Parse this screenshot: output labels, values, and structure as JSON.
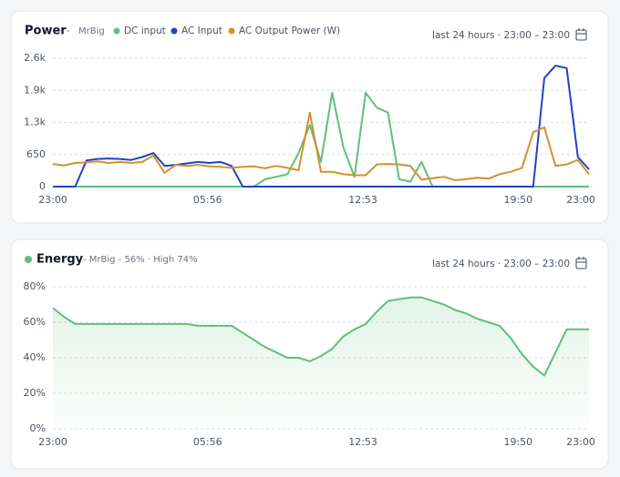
{
  "chart_data": [
    {
      "type": "line",
      "title": "Power",
      "title_separator": "-",
      "subtitle": "MrBig",
      "date_range": "last 24 hours · 23:00 – 23:00",
      "x": [
        0,
        0.5,
        1,
        1.5,
        2,
        2.5,
        3,
        3.5,
        4,
        4.5,
        5,
        5.5,
        6,
        6.5,
        7,
        7.5,
        8,
        8.5,
        9,
        9.5,
        10,
        10.5,
        11,
        11.5,
        12,
        12.5,
        13,
        13.5,
        14,
        14.5,
        15,
        15.5,
        16,
        16.5,
        17,
        17.5,
        18,
        18.5,
        19,
        19.5,
        20,
        20.5,
        21,
        21.5,
        22,
        22.5,
        23,
        23.5,
        24
      ],
      "xlim": [
        0,
        24
      ],
      "xticks": [
        {
          "value": 0,
          "label": "23:00"
        },
        {
          "value": 6.93,
          "label": "05:56"
        },
        {
          "value": 13.88,
          "label": "12:53"
        },
        {
          "value": 20.83,
          "label": "19:50"
        },
        {
          "value": 24,
          "label": "23:00"
        }
      ],
      "ylim": [
        0,
        2600
      ],
      "yticks": [
        0,
        650,
        {
          "value": 1300,
          "label": "1.3k"
        },
        {
          "value": 1950,
          "label": "1.9k"
        },
        {
          "value": 2600,
          "label": "2.6k"
        }
      ],
      "grid": true,
      "series": [
        {
          "name": "DC input",
          "color": "#5fbf7a",
          "values": [
            0,
            0,
            0,
            0,
            0,
            0,
            0,
            0,
            0,
            0,
            0,
            0,
            0,
            0,
            0,
            0,
            0,
            0,
            0,
            150,
            200,
            250,
            680,
            1250,
            500,
            1900,
            800,
            200,
            1900,
            1600,
            1500,
            150,
            100,
            500,
            0,
            0,
            0,
            0,
            0,
            0,
            0,
            0,
            0,
            0,
            0,
            0,
            0,
            0,
            0
          ]
        },
        {
          "name": "AC Input",
          "color": "#2343c0",
          "values": [
            0,
            0,
            0,
            530,
            560,
            570,
            560,
            540,
            600,
            680,
            420,
            440,
            470,
            500,
            480,
            500,
            420,
            0,
            0,
            0,
            0,
            0,
            0,
            0,
            0,
            0,
            0,
            0,
            0,
            0,
            0,
            0,
            0,
            0,
            0,
            0,
            0,
            0,
            0,
            0,
            0,
            0,
            0,
            0,
            2200,
            2450,
            2400,
            600,
            350
          ]
        },
        {
          "name": "AC Output Power (W)",
          "color": "#d4902f",
          "values": [
            460,
            430,
            480,
            490,
            510,
            480,
            500,
            480,
            500,
            630,
            280,
            440,
            420,
            440,
            410,
            400,
            380,
            400,
            410,
            370,
            420,
            380,
            330,
            1500,
            300,
            300,
            250,
            230,
            230,
            450,
            460,
            450,
            420,
            140,
            170,
            200,
            130,
            150,
            180,
            160,
            250,
            300,
            380,
            1100,
            1200,
            420,
            450,
            540,
            250
          ]
        }
      ]
    },
    {
      "type": "area",
      "title": "Energy",
      "subtitle": "- MrBig - 56% · High 74%",
      "date_range": "last 24 hours · 23:00 – 23:00",
      "x": [
        0,
        0.5,
        1,
        1.5,
        2,
        2.5,
        3,
        3.5,
        4,
        4.5,
        5,
        5.5,
        6,
        6.5,
        7,
        7.5,
        8,
        8.5,
        9,
        9.5,
        10,
        10.5,
        11,
        11.5,
        12,
        12.5,
        13,
        13.5,
        14,
        14.5,
        15,
        15.5,
        16,
        16.5,
        17,
        17.5,
        18,
        18.5,
        19,
        19.5,
        20,
        20.5,
        21,
        21.5,
        22,
        22.5,
        23,
        23.5,
        24
      ],
      "xlim": [
        0,
        24
      ],
      "xticks": [
        {
          "value": 0,
          "label": "23:00"
        },
        {
          "value": 6.93,
          "label": "05:56"
        },
        {
          "value": 13.88,
          "label": "12:53"
        },
        {
          "value": 20.83,
          "label": "19:50"
        },
        {
          "value": 24,
          "label": "23:00"
        }
      ],
      "ylim": [
        0,
        80
      ],
      "yticks": [
        {
          "value": 0,
          "label": "0%"
        },
        {
          "value": 20,
          "label": "20%"
        },
        {
          "value": 40,
          "label": "40%"
        },
        {
          "value": 60,
          "label": "60%"
        },
        {
          "value": 80,
          "label": "80%"
        }
      ],
      "grid": true,
      "series": [
        {
          "color": "#5fbf7a",
          "values": [
            68,
            63,
            59,
            59,
            59,
            59,
            59,
            59,
            59,
            59,
            59,
            59,
            59,
            58,
            58,
            58,
            58,
            54,
            50,
            46,
            43,
            40,
            40,
            38,
            41,
            45,
            52,
            56,
            59,
            66,
            72,
            73,
            74,
            74,
            72,
            70,
            67,
            65,
            62,
            60,
            58,
            51,
            42,
            35,
            30,
            43,
            56,
            56,
            56
          ]
        }
      ]
    }
  ]
}
